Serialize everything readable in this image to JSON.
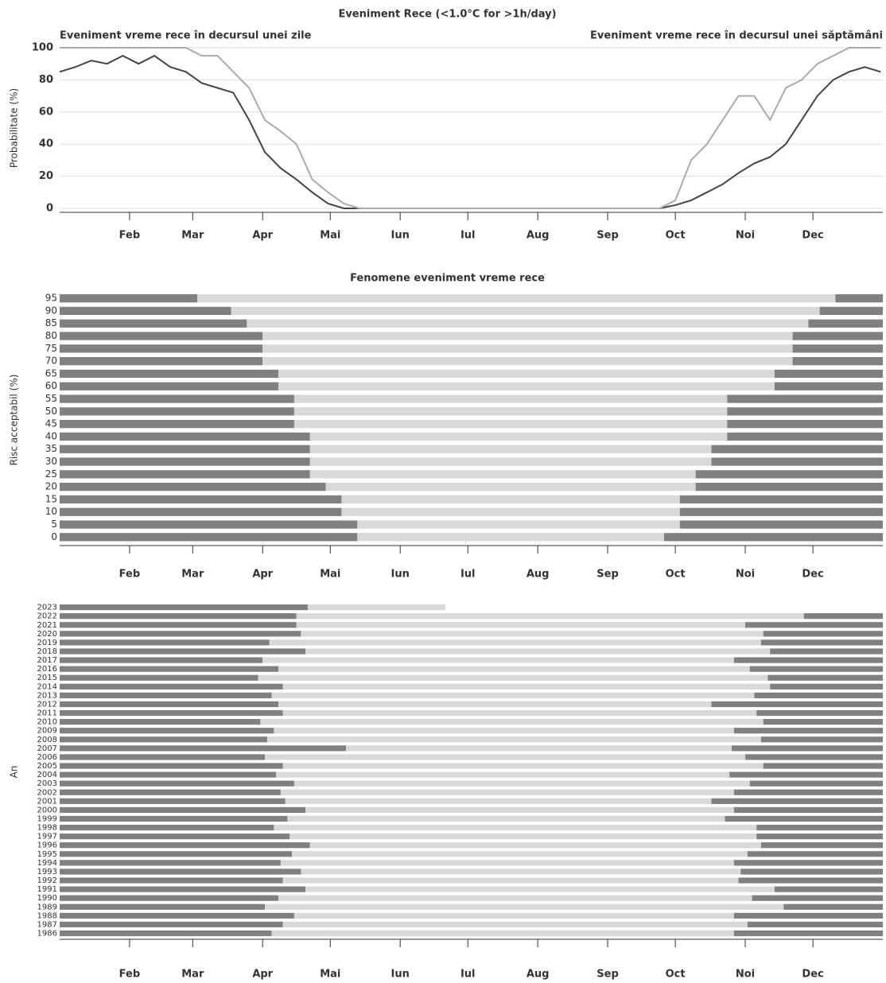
{
  "chart_data": [
    {
      "type": "line",
      "title": "Eveniment Rece (<1.0°C for >1h/day)",
      "ylabel": "Probabilitate (%)",
      "xlim": [
        1,
        366
      ],
      "ylim": [
        0,
        100
      ],
      "yticks": [
        0,
        20,
        40,
        60,
        80,
        100
      ],
      "grid": true,
      "xticks": [
        {
          "value": 32,
          "label": "Feb"
        },
        {
          "value": 60,
          "label": "Mar"
        },
        {
          "value": 91,
          "label": "Apr"
        },
        {
          "value": 121,
          "label": "Mai"
        },
        {
          "value": 152,
          "label": "Iun"
        },
        {
          "value": 182,
          "label": "Iul"
        },
        {
          "value": 213,
          "label": "Aug"
        },
        {
          "value": 244,
          "label": "Sep"
        },
        {
          "value": 274,
          "label": "Oct"
        },
        {
          "value": 305,
          "label": "Noi"
        },
        {
          "value": 335,
          "label": "Dec"
        }
      ],
      "x": [
        1,
        8,
        15,
        22,
        29,
        36,
        43,
        50,
        57,
        64,
        71,
        78,
        85,
        92,
        99,
        106,
        113,
        120,
        127,
        134,
        141,
        148,
        155,
        162,
        169,
        176,
        183,
        190,
        197,
        204,
        211,
        218,
        225,
        232,
        239,
        246,
        253,
        260,
        267,
        274,
        281,
        288,
        295,
        302,
        309,
        316,
        323,
        330,
        337,
        344,
        351,
        358,
        365
      ],
      "series": [
        {
          "name": "Eveniment vreme rece în decursul unei zile",
          "color": "#444444",
          "values": [
            85,
            88,
            92,
            90,
            95,
            90,
            95,
            88,
            85,
            78,
            75,
            72,
            55,
            35,
            25,
            18,
            10,
            3,
            0,
            0,
            0,
            0,
            0,
            0,
            0,
            0,
            0,
            0,
            0,
            0,
            0,
            0,
            0,
            0,
            0,
            0,
            0,
            0,
            0,
            2,
            5,
            10,
            15,
            22,
            28,
            32,
            40,
            55,
            70,
            80,
            85,
            88,
            85
          ]
        },
        {
          "name": "Eveniment vreme rece în decursul unei săptămâni",
          "color": "#aaaaaa",
          "values": [
            100,
            100,
            100,
            100,
            100,
            100,
            100,
            100,
            100,
            95,
            95,
            85,
            75,
            55,
            48,
            40,
            18,
            10,
            3,
            0,
            0,
            0,
            0,
            0,
            0,
            0,
            0,
            0,
            0,
            0,
            0,
            0,
            0,
            0,
            0,
            0,
            0,
            0,
            0,
            5,
            30,
            40,
            55,
            70,
            70,
            55,
            75,
            80,
            90,
            95,
            100,
            100,
            100
          ]
        }
      ]
    },
    {
      "type": "timeline",
      "title": "Fenomene eveniment vreme rece",
      "ylabel": "Risc acceptabil (%)",
      "xlim": [
        1,
        366
      ],
      "colors": [
        "#808080",
        "#d9d9d9"
      ],
      "xticks": [
        {
          "value": 32,
          "label": "Feb"
        },
        {
          "value": 60,
          "label": "Mar"
        },
        {
          "value": 91,
          "label": "Apr"
        },
        {
          "value": 121,
          "label": "Mai"
        },
        {
          "value": 152,
          "label": "Iun"
        },
        {
          "value": 182,
          "label": "Iul"
        },
        {
          "value": 213,
          "label": "Aug"
        },
        {
          "value": 244,
          "label": "Sep"
        },
        {
          "value": 274,
          "label": "Oct"
        },
        {
          "value": 305,
          "label": "Noi"
        },
        {
          "value": 335,
          "label": "Dec"
        }
      ],
      "categories": [
        95,
        90,
        85,
        80,
        75,
        70,
        65,
        60,
        55,
        50,
        45,
        40,
        35,
        30,
        25,
        20,
        15,
        10,
        5,
        0
      ],
      "spring_end": [
        62,
        77,
        84,
        91,
        91,
        91,
        98,
        98,
        105,
        105,
        105,
        112,
        112,
        112,
        112,
        119,
        126,
        126,
        133,
        133
      ],
      "autumn_start": [
        345,
        338,
        333,
        326,
        326,
        326,
        318,
        318,
        297,
        297,
        297,
        297,
        290,
        290,
        283,
        283,
        276,
        276,
        276,
        269
      ]
    },
    {
      "type": "timeline",
      "ylabel": "An",
      "xlim": [
        1,
        366
      ],
      "colors": [
        "#808080",
        "#d9d9d9"
      ],
      "data_end": 172,
      "xticks": [
        {
          "value": 32,
          "label": "Feb"
        },
        {
          "value": 60,
          "label": "Mar"
        },
        {
          "value": 91,
          "label": "Apr"
        },
        {
          "value": 121,
          "label": "Mai"
        },
        {
          "value": 152,
          "label": "Iun"
        },
        {
          "value": 182,
          "label": "Iul"
        },
        {
          "value": 213,
          "label": "Aug"
        },
        {
          "value": 244,
          "label": "Sep"
        },
        {
          "value": 274,
          "label": "Oct"
        },
        {
          "value": 305,
          "label": "Noi"
        },
        {
          "value": 335,
          "label": "Dec"
        }
      ],
      "categories": [
        2023,
        2022,
        2021,
        2020,
        2019,
        2018,
        2017,
        2016,
        2015,
        2014,
        2013,
        2012,
        2011,
        2010,
        2009,
        2008,
        2007,
        2006,
        2005,
        2004,
        2003,
        2002,
        2001,
        2000,
        1999,
        1998,
        1997,
        1996,
        1995,
        1994,
        1993,
        1992,
        1991,
        1990,
        1989,
        1988,
        1987,
        1986
      ],
      "spring_end": [
        111,
        106,
        106,
        108,
        94,
        110,
        91,
        98,
        89,
        100,
        95,
        98,
        100,
        90,
        96,
        93,
        128,
        92,
        100,
        97,
        105,
        99,
        101,
        110,
        102,
        96,
        103,
        112,
        104,
        99,
        108,
        100,
        110,
        98,
        92,
        105,
        100,
        95
      ],
      "autumn_start": [
        null,
        331,
        305,
        313,
        312,
        316,
        300,
        307,
        315,
        316,
        309,
        290,
        310,
        313,
        300,
        312,
        299,
        305,
        313,
        298,
        307,
        300,
        290,
        300,
        296,
        310,
        310,
        312,
        306,
        300,
        303,
        302,
        318,
        308,
        322,
        300,
        306,
        300
      ]
    }
  ]
}
